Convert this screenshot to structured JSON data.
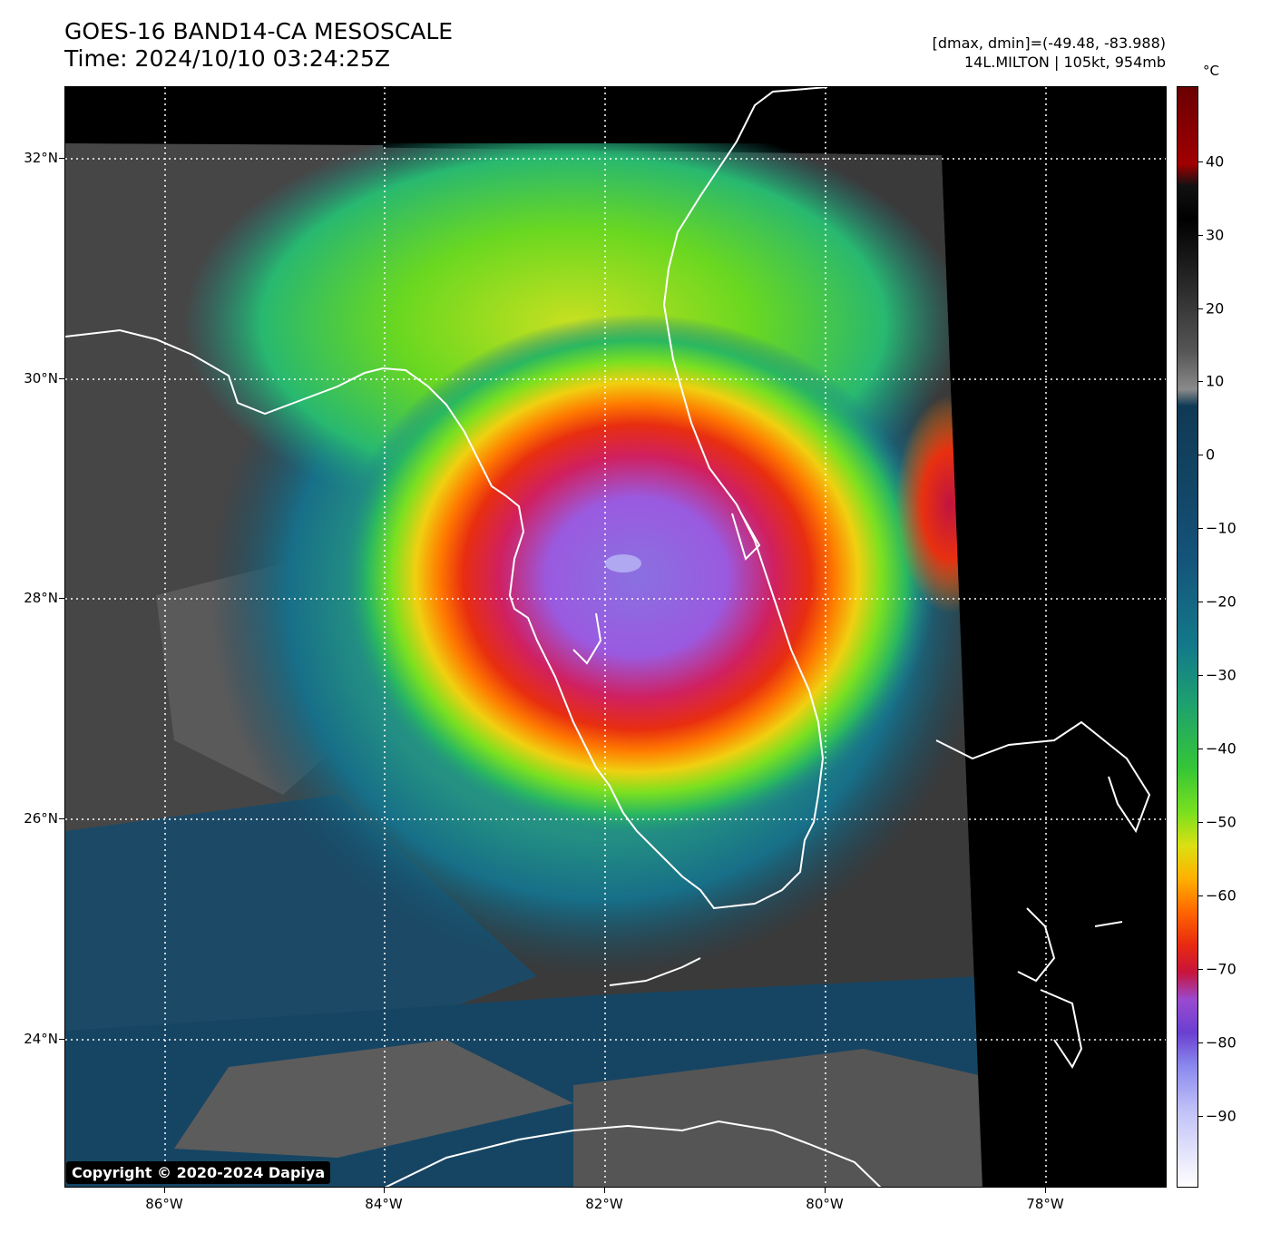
{
  "header": {
    "title_line1": "GOES-16 BAND14-CA MESOSCALE",
    "title_line2": "Time: 2024/10/10 03:24:25Z",
    "range_text": "[dmax, dmin]=(-49.48, -83.988)",
    "storm_text": "14L.MILTON | 105kt, 954mb"
  },
  "map": {
    "lat_labels": [
      "32°N",
      "30°N",
      "28°N",
      "26°N",
      "24°N"
    ],
    "lon_labels": [
      "86°W",
      "84°W",
      "82°W",
      "80°W",
      "78°W"
    ]
  },
  "colorbar": {
    "unit": "°C",
    "labels": [
      "40",
      "30",
      "20",
      "10",
      "0",
      "−10",
      "−20",
      "−30",
      "−40",
      "−50",
      "−60",
      "−70",
      "−80",
      "−90"
    ]
  },
  "copyright": "Copyright © 2020-2024 Dapiya"
}
